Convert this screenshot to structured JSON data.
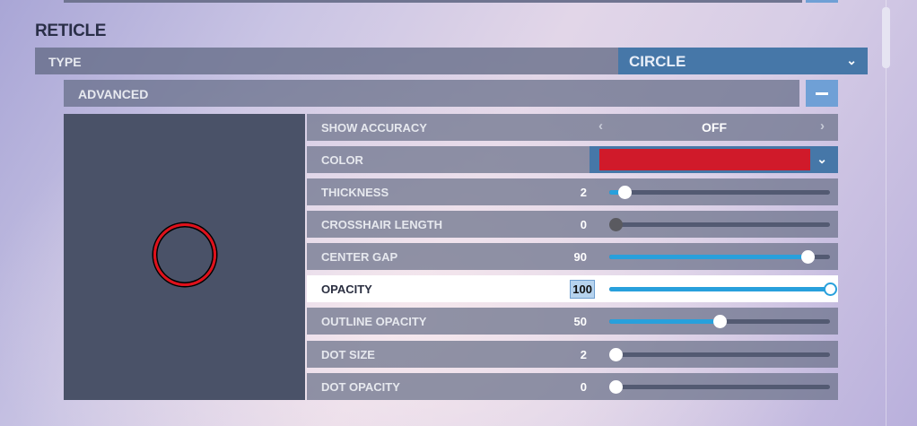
{
  "section_title": "RETICLE",
  "type": {
    "label": "TYPE",
    "value": "CIRCLE"
  },
  "advanced": {
    "label": "ADVANCED"
  },
  "reticle_color": "#d01a2a",
  "accent": "#28a0dc",
  "settings": [
    {
      "label": "SHOW ACCURACY",
      "value": "OFF"
    },
    {
      "label": "COLOR"
    },
    {
      "label": "THICKNESS",
      "value": "2",
      "level": 0.07
    },
    {
      "label": "CROSSHAIR LENGTH",
      "value": "0",
      "level": 0
    },
    {
      "label": "CENTER GAP",
      "value": "90",
      "level": 0.9
    },
    {
      "label": "OPACITY",
      "value": "100",
      "level": 1
    },
    {
      "label": "OUTLINE OPACITY",
      "value": "50",
      "level": 0.5
    },
    {
      "label": "DOT SIZE",
      "value": "2",
      "level": 0
    },
    {
      "label": "DOT OPACITY",
      "value": "0",
      "level": 0
    }
  ]
}
